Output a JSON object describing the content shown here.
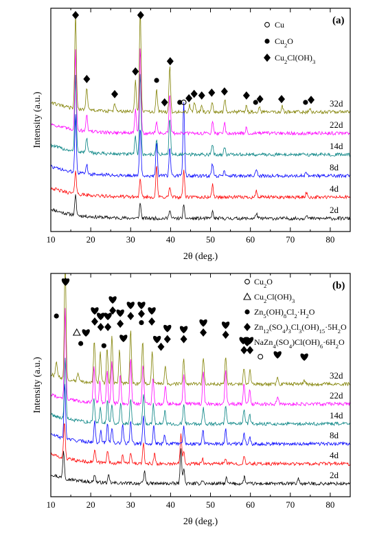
{
  "chart_data": [
    {
      "type": "line",
      "panel_label": "(a)",
      "xlabel": "2θ (deg.)",
      "ylabel": "Intensity (a.u.)",
      "xlim": [
        10,
        85
      ],
      "xticks": [
        10,
        20,
        30,
        40,
        50,
        60,
        70,
        80
      ],
      "legend": {
        "placement": "top-right",
        "entries": [
          {
            "symbol": "circle-open",
            "label_main": "Cu",
            "label_sub": ""
          },
          {
            "symbol": "circle-filled",
            "label_main": "Cu",
            "label_sub": "2",
            "label_rest": "O"
          },
          {
            "symbol": "diamond",
            "label_main": "Cu",
            "label_sub": "2",
            "label_rest": "Cl(OH)",
            "label_sub2": "3"
          }
        ]
      },
      "series": [
        {
          "name": "2d",
          "color": "#000000",
          "peaks": [
            [
              16.2,
              28
            ],
            [
              32.4,
              22
            ],
            [
              39.8,
              14
            ],
            [
              43.3,
              18
            ],
            [
              50.5,
              10
            ],
            [
              61.5,
              8
            ],
            [
              74.0,
              6
            ]
          ]
        },
        {
          "name": "4d",
          "color": "#ff0000",
          "peaks": [
            [
              16.2,
              35
            ],
            [
              32.4,
              25
            ],
            [
              36.5,
              45
            ],
            [
              39.8,
              15
            ],
            [
              43.3,
              40
            ],
            [
              50.5,
              18
            ],
            [
              61.5,
              9
            ],
            [
              74.0,
              7
            ]
          ]
        },
        {
          "name": "8d",
          "color": "#0000ff",
          "peaks": [
            [
              16.2,
              85
            ],
            [
              19.0,
              14
            ],
            [
              32.4,
              70
            ],
            [
              36.5,
              50
            ],
            [
              39.8,
              40
            ],
            [
              43.3,
              110
            ],
            [
              50.5,
              18
            ],
            [
              53.5,
              8
            ],
            [
              61.5,
              8
            ],
            [
              74.0,
              6
            ]
          ]
        },
        {
          "name": "14d",
          "color": "#008080",
          "peaks": [
            [
              16.2,
              110
            ],
            [
              19.0,
              22
            ],
            [
              31.2,
              26
            ],
            [
              32.4,
              120
            ],
            [
              36.5,
              20
            ],
            [
              39.8,
              55
            ],
            [
              50.5,
              15
            ],
            [
              53.5,
              12
            ]
          ]
        },
        {
          "name": "22d",
          "color": "#ff00ff",
          "peaks": [
            [
              16.2,
              115
            ],
            [
              19.0,
              26
            ],
            [
              31.2,
              34
            ],
            [
              32.4,
              125
            ],
            [
              36.5,
              18
            ],
            [
              39.8,
              58
            ],
            [
              50.5,
              18
            ],
            [
              53.5,
              16
            ],
            [
              59.0,
              8
            ]
          ]
        },
        {
          "name": "32d",
          "color": "#808000",
          "peaks": [
            [
              16.2,
              140
            ],
            [
              19.0,
              34
            ],
            [
              26.0,
              12
            ],
            [
              31.2,
              45
            ],
            [
              32.4,
              150
            ],
            [
              36.5,
              32
            ],
            [
              39.8,
              68
            ],
            [
              44.8,
              10
            ],
            [
              46.0,
              14
            ],
            [
              47.8,
              10
            ],
            [
              50.4,
              16
            ],
            [
              53.6,
              18
            ],
            [
              59.0,
              10
            ],
            [
              62.2,
              8
            ],
            [
              68.0,
              8
            ],
            [
              75.0,
              6
            ]
          ]
        }
      ],
      "markers": [
        {
          "symbol": "diamond",
          "x": 16.2
        },
        {
          "symbol": "diamond",
          "x": 19.0
        },
        {
          "symbol": "diamond",
          "x": 26.0
        },
        {
          "symbol": "diamond",
          "x": 31.2
        },
        {
          "symbol": "diamond",
          "x": 32.5
        },
        {
          "symbol": "circle-filled",
          "x": 36.5
        },
        {
          "symbol": "diamond",
          "x": 38.5
        },
        {
          "symbol": "diamond",
          "x": 39.9
        },
        {
          "symbol": "circle-filled",
          "x": 42.3
        },
        {
          "symbol": "circle-open",
          "x": 43.3
        },
        {
          "symbol": "diamond",
          "x": 44.6
        },
        {
          "symbol": "diamond",
          "x": 45.9
        },
        {
          "symbol": "diamond",
          "x": 47.8
        },
        {
          "symbol": "diamond",
          "x": 50.3
        },
        {
          "symbol": "diamond",
          "x": 53.5
        },
        {
          "symbol": "diamond",
          "x": 59.0
        },
        {
          "symbol": "circle-filled",
          "x": 61.3
        },
        {
          "symbol": "diamond",
          "x": 62.4
        },
        {
          "symbol": "diamond",
          "x": 67.8
        },
        {
          "symbol": "circle-filled",
          "x": 73.8
        },
        {
          "symbol": "diamond",
          "x": 75.2
        }
      ]
    },
    {
      "type": "line",
      "panel_label": "(b)",
      "xlabel": "2θ (deg.)",
      "ylabel": "Intensity (a.u.)",
      "xlim": [
        10,
        85
      ],
      "xticks": [
        10,
        20,
        30,
        40,
        50,
        60,
        70,
        80
      ],
      "legend": {
        "placement": "top-right",
        "entries": [
          {
            "symbol": "circle-open",
            "text": "Cu2O"
          },
          {
            "symbol": "triangle-open",
            "text": "Cu2Cl(OH)3"
          },
          {
            "symbol": "circle-filled",
            "text": "Zn5(OH)8Cl2·H2O"
          },
          {
            "symbol": "diamond",
            "text": "Zn12(SO4)3Cl3(OH)15·5H2O"
          },
          {
            "symbol": "heart",
            "text": "NaZn4(SO4)Cl(OH)6·6H2O"
          }
        ]
      },
      "series": [
        {
          "name": "2d",
          "color": "#000000",
          "peaks": [
            [
              13.2,
              40
            ],
            [
              21.0,
              12
            ],
            [
              24.5,
              10
            ],
            [
              33.5,
              18
            ],
            [
              42.6,
              50
            ],
            [
              43.3,
              22
            ],
            [
              48.0,
              6
            ],
            [
              54.0,
              8
            ],
            [
              58.5,
              10
            ],
            [
              72.0,
              8
            ]
          ]
        },
        {
          "name": "4d",
          "color": "#ff0000",
          "peaks": [
            [
              13.4,
              55
            ],
            [
              21.0,
              18
            ],
            [
              24.2,
              20
            ],
            [
              28.0,
              14
            ],
            [
              30.0,
              15
            ],
            [
              33.2,
              28
            ],
            [
              36.0,
              14
            ],
            [
              42.6,
              45
            ],
            [
              43.3,
              20
            ],
            [
              48.0,
              8
            ],
            [
              53.8,
              8
            ],
            [
              58.4,
              10
            ]
          ]
        },
        {
          "name": "8d",
          "color": "#0000ff",
          "peaks": [
            [
              13.5,
              80
            ],
            [
              21.0,
              30
            ],
            [
              22.5,
              18
            ],
            [
              24.2,
              30
            ],
            [
              25.3,
              22
            ],
            [
              28.0,
              26
            ],
            [
              30.0,
              34
            ],
            [
              33.2,
              40
            ],
            [
              35.8,
              26
            ],
            [
              38.5,
              14
            ],
            [
              43.3,
              26
            ],
            [
              48.1,
              20
            ],
            [
              53.8,
              22
            ],
            [
              58.4,
              16
            ],
            [
              59.8,
              10
            ]
          ]
        },
        {
          "name": "14d",
          "color": "#008080",
          "peaks": [
            [
              13.6,
              90
            ],
            [
              20.8,
              35
            ],
            [
              22.4,
              22
            ],
            [
              24.2,
              34
            ],
            [
              25.3,
              28
            ],
            [
              27.5,
              30
            ],
            [
              30.0,
              38
            ],
            [
              33.2,
              44
            ],
            [
              35.7,
              28
            ],
            [
              38.6,
              18
            ],
            [
              43.3,
              30
            ],
            [
              48.2,
              24
            ],
            [
              53.8,
              28
            ],
            [
              58.4,
              22
            ],
            [
              59.8,
              14
            ]
          ]
        },
        {
          "name": "22d",
          "color": "#ff00ff",
          "peaks": [
            [
              13.6,
              130
            ],
            [
              20.8,
              55
            ],
            [
              22.3,
              32
            ],
            [
              24.1,
              46
            ],
            [
              25.3,
              62
            ],
            [
              27.4,
              42
            ],
            [
              30.0,
              64
            ],
            [
              33.1,
              58
            ],
            [
              35.6,
              40
            ],
            [
              38.7,
              26
            ],
            [
              43.3,
              42
            ],
            [
              48.2,
              48
            ],
            [
              53.8,
              50
            ],
            [
              58.4,
              30
            ],
            [
              59.8,
              20
            ],
            [
              66.8,
              12
            ]
          ]
        },
        {
          "name": "32d",
          "color": "#808000",
          "peaks": [
            [
              11.4,
              24
            ],
            [
              13.6,
              180
            ],
            [
              16.8,
              12
            ],
            [
              20.9,
              62
            ],
            [
              22.4,
              44
            ],
            [
              24.1,
              52
            ],
            [
              25.3,
              70
            ],
            [
              27.2,
              50
            ],
            [
              30.0,
              78
            ],
            [
              33.0,
              62
            ],
            [
              35.4,
              46
            ],
            [
              38.7,
              28
            ],
            [
              43.3,
              38
            ],
            [
              48.2,
              40
            ],
            [
              53.8,
              42
            ],
            [
              58.4,
              24
            ],
            [
              59.9,
              20
            ],
            [
              66.8,
              10
            ],
            [
              73.5,
              6
            ]
          ]
        }
      ],
      "markers": [
        {
          "symbol": "circle-filled",
          "x": 11.4,
          "row": 2.5
        },
        {
          "symbol": "heart",
          "x": 13.7,
          "row": 0
        },
        {
          "symbol": "diamond",
          "x": 13.7,
          "row": 1
        },
        {
          "symbol": "triangle-open",
          "x": 16.5,
          "row": 4
        },
        {
          "symbol": "circle-filled",
          "x": 17.5,
          "row": 5
        },
        {
          "symbol": "heart",
          "x": 18.8,
          "row": 4
        },
        {
          "symbol": "heart",
          "x": 21.0,
          "row": 2
        },
        {
          "symbol": "diamond",
          "x": 21.0,
          "row": 3
        },
        {
          "symbol": "heart",
          "x": 22.5,
          "row": 2.5
        },
        {
          "symbol": "diamond",
          "x": 22.5,
          "row": 3.5
        },
        {
          "symbol": "circle-filled",
          "x": 23.3,
          "row": 5.2
        },
        {
          "symbol": "heart",
          "x": 24.3,
          "row": 2.5
        },
        {
          "symbol": "diamond",
          "x": 24.3,
          "row": 3.5
        },
        {
          "symbol": "heart",
          "x": 25.5,
          "row": 1
        },
        {
          "symbol": "diamond",
          "x": 25.5,
          "row": 2
        },
        {
          "symbol": "heart",
          "x": 27.4,
          "row": 2.2
        },
        {
          "symbol": "diamond",
          "x": 27.4,
          "row": 3.2
        },
        {
          "symbol": "heart",
          "x": 28.2,
          "row": 4.5
        },
        {
          "symbol": "heart",
          "x": 30.0,
          "row": 1.5
        },
        {
          "symbol": "diamond",
          "x": 30.0,
          "row": 2.5
        },
        {
          "symbol": "heart",
          "x": 32.7,
          "row": 1.5
        },
        {
          "symbol": "diamond",
          "x": 32.7,
          "row": 2.3
        },
        {
          "symbol": "circle-filled",
          "x": 32.7,
          "row": 3.1
        },
        {
          "symbol": "heart",
          "x": 35.3,
          "row": 2
        },
        {
          "symbol": "diamond",
          "x": 35.3,
          "row": 3
        },
        {
          "symbol": "heart",
          "x": 36.6,
          "row": 4.6
        },
        {
          "symbol": "diamond",
          "x": 37.6,
          "row": 5.3
        },
        {
          "symbol": "heart",
          "x": 39.2,
          "row": 3.6
        },
        {
          "symbol": "diamond",
          "x": 39.2,
          "row": 4.6
        },
        {
          "symbol": "heart",
          "x": 43.3,
          "row": 3.7
        },
        {
          "symbol": "diamond",
          "x": 43.3,
          "row": 4.6
        },
        {
          "symbol": "heart",
          "x": 48.2,
          "row": 3.1
        },
        {
          "symbol": "diamond",
          "x": 48.2,
          "row": 4
        },
        {
          "symbol": "heart",
          "x": 53.8,
          "row": 3.3
        },
        {
          "symbol": "diamond",
          "x": 53.8,
          "row": 4.2
        },
        {
          "symbol": "heart",
          "x": 58.2,
          "row": 4.7
        },
        {
          "symbol": "diamond",
          "x": 58.4,
          "row": 5.6
        },
        {
          "symbol": "heart",
          "x": 59.8,
          "row": 4.7
        },
        {
          "symbol": "diamond",
          "x": 59.9,
          "row": 5.6
        },
        {
          "symbol": "circle-open",
          "x": 62.5,
          "row": 6.2
        },
        {
          "symbol": "heart",
          "x": 66.8,
          "row": 6.0
        },
        {
          "symbol": "heart",
          "x": 73.5,
          "row": 6.2
        }
      ]
    }
  ]
}
